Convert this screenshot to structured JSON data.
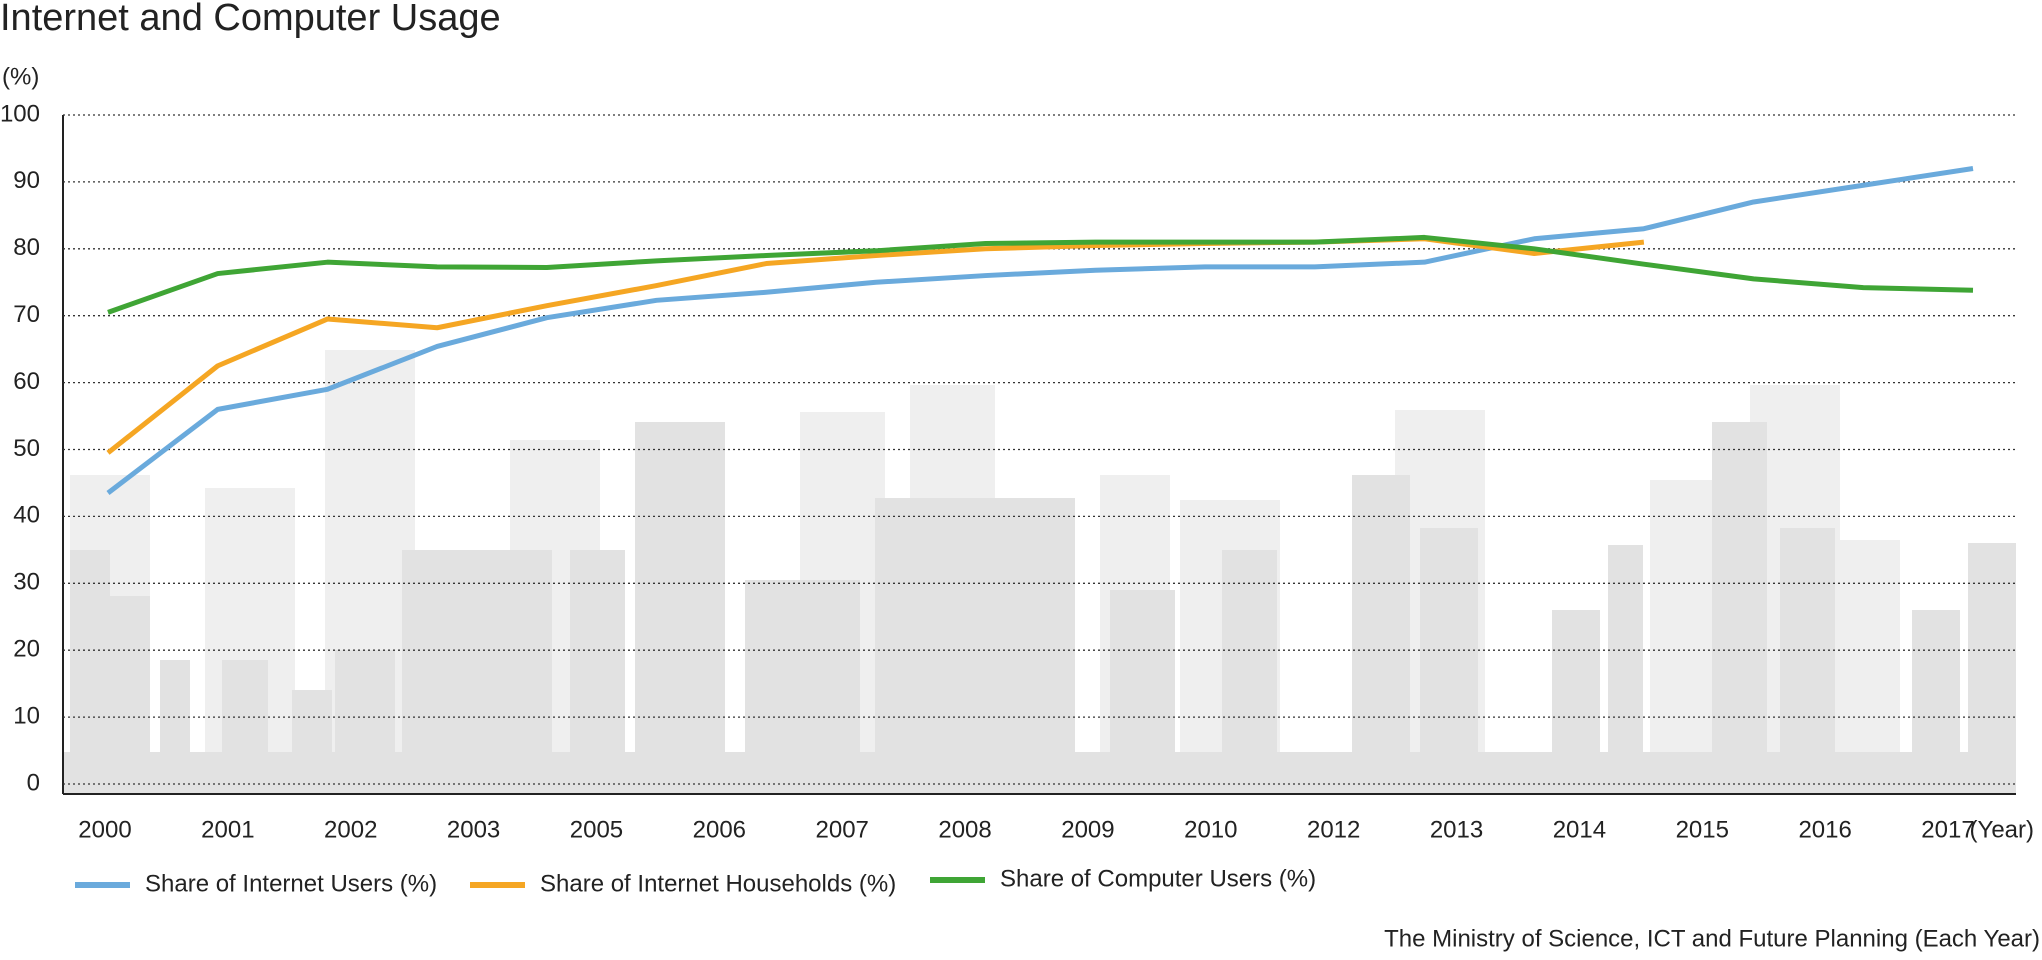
{
  "chart_data": {
    "type": "line",
    "title": "Internet and Computer Usage",
    "y_axis_label": "(%)",
    "x_axis_label": "(Year)",
    "source": "The Ministry of Science, ICT and Future Planning (Each Year)",
    "categories": [
      "2000",
      "2001",
      "2002",
      "2003",
      null,
      "2005",
      "2006",
      "2007",
      "2008",
      "2009",
      "2010",
      null,
      "2012",
      "2013",
      "2014",
      "2015",
      "2016",
      "2017"
    ],
    "series": [
      {
        "name": "Share of Internet Users (%)",
        "color": "#6aaadc",
        "values": [
          43.5,
          56,
          59,
          65.4,
          69.7,
          72.3,
          73.5,
          75,
          76,
          76.8,
          77.3,
          77.3,
          78,
          81.5,
          83,
          87,
          89.5,
          92
        ]
      },
      {
        "name": "Share of Internet Households (%)",
        "color": "#f5a623",
        "values": [
          49.5,
          62.5,
          69.5,
          68.2,
          71.5,
          74.5,
          77.8,
          79,
          80,
          80.5,
          80.8,
          81,
          81.5,
          79.3,
          81,
          null,
          null,
          null
        ]
      },
      {
        "name": "Share of Computer Users (%)",
        "color": "#3fa535",
        "values": [
          70.5,
          76.3,
          78,
          77.3,
          77.2,
          78.2,
          79,
          79.7,
          80.8,
          81,
          81,
          81,
          81.7,
          80,
          77.7,
          75.5,
          74.2,
          73.8
        ]
      }
    ],
    "ylim": [
      0,
      100
    ],
    "yticks": [
      0,
      10,
      20,
      30,
      40,
      50,
      60,
      70,
      80,
      90,
      100
    ],
    "grid": true
  }
}
